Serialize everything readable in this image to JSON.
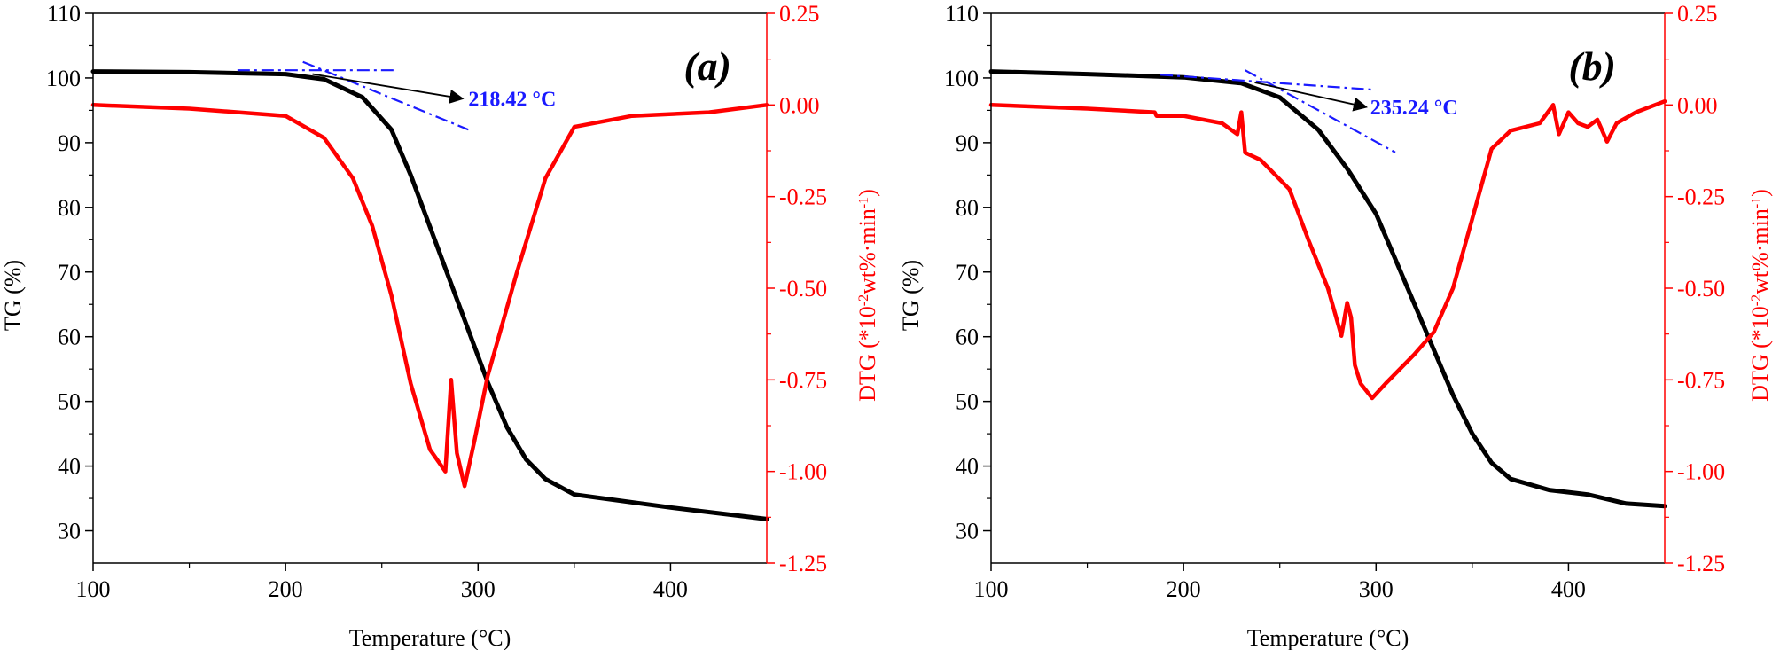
{
  "colors": {
    "tg": "#000000",
    "dtg": "#ff0000",
    "tangent": "#1a1aff",
    "axis": "#000000"
  },
  "chart_data": [
    {
      "type": "line",
      "panel_label": "(a)",
      "xlabel": "Temperature (°C)",
      "ylabel_left": "TG (%)",
      "ylabel_right_prefix": "DTG (*10",
      "ylabel_right_sup1": "-2",
      "ylabel_right_mid": "wt%·min",
      "ylabel_right_sup2": "-1",
      "ylabel_right_suffix": ")",
      "xlim": [
        100,
        450
      ],
      "ylim_left": [
        25,
        110
      ],
      "ylim_right": [
        -1.25,
        0.25
      ],
      "x_ticks": [
        100,
        200,
        300,
        400
      ],
      "x_tick_labels": [
        "100",
        "200",
        "300",
        "400"
      ],
      "y_left_ticks": [
        30,
        40,
        50,
        60,
        70,
        80,
        90,
        100,
        110
      ],
      "y_left_tick_labels": [
        "30",
        "40",
        "50",
        "60",
        "70",
        "80",
        "90",
        "100",
        "110"
      ],
      "y_right_ticks": [
        -1.25,
        -1.0,
        -0.75,
        -0.5,
        -0.25,
        0.0,
        0.25
      ],
      "y_right_tick_labels": [
        "-1.25",
        "-1.00",
        "-0.75",
        "-0.50",
        "-0.25",
        "0.00",
        "0.25"
      ],
      "onset_label": "218.42 °C",
      "onset": {
        "line1": [
          [
            175,
            101.2
          ],
          [
            258,
            101.2
          ]
        ],
        "line2": [
          [
            209,
            102.5
          ],
          [
            295,
            92.0
          ]
        ],
        "arrow_from": [
          214,
          100.6
        ],
        "arrow_to": [
          292,
          96.8
        ],
        "label_at": [
          295,
          96.8
        ]
      },
      "series": [
        {
          "name": "TG",
          "axis": "left",
          "points": [
            [
              100,
              101
            ],
            [
              150,
              100.9
            ],
            [
              200,
              100.6
            ],
            [
              220,
              99.8
            ],
            [
              240,
              97
            ],
            [
              255,
              92
            ],
            [
              265,
              85
            ],
            [
              275,
              77
            ],
            [
              285,
              69
            ],
            [
              295,
              61
            ],
            [
              305,
              53
            ],
            [
              315,
              46
            ],
            [
              325,
              41
            ],
            [
              335,
              38
            ],
            [
              350,
              35.6
            ],
            [
              400,
              33.6
            ],
            [
              450,
              31.8
            ]
          ]
        },
        {
          "name": "DTG",
          "axis": "right",
          "points": [
            [
              100,
              0.0
            ],
            [
              150,
              -0.01
            ],
            [
              200,
              -0.03
            ],
            [
              220,
              -0.09
            ],
            [
              235,
              -0.2
            ],
            [
              245,
              -0.33
            ],
            [
              255,
              -0.52
            ],
            [
              265,
              -0.76
            ],
            [
              275,
              -0.94
            ],
            [
              283,
              -1.0
            ],
            [
              286,
              -0.75
            ],
            [
              289,
              -0.95
            ],
            [
              293,
              -1.04
            ],
            [
              298,
              -0.92
            ],
            [
              305,
              -0.74
            ],
            [
              320,
              -0.46
            ],
            [
              335,
              -0.2
            ],
            [
              350,
              -0.06
            ],
            [
              380,
              -0.03
            ],
            [
              420,
              -0.02
            ],
            [
              450,
              0.0
            ]
          ]
        }
      ]
    },
    {
      "type": "line",
      "panel_label": "(b)",
      "xlabel": "Temperature (°C)",
      "ylabel_left": "TG (%)",
      "ylabel_right_prefix": "DTG (*10",
      "ylabel_right_sup1": "-2",
      "ylabel_right_mid": "wt%·min",
      "ylabel_right_sup2": "-1",
      "ylabel_right_suffix": ")",
      "xlim": [
        100,
        450
      ],
      "ylim_left": [
        25,
        110
      ],
      "ylim_right": [
        -1.25,
        0.25
      ],
      "x_ticks": [
        100,
        200,
        300,
        400
      ],
      "x_tick_labels": [
        "100",
        "200",
        "300",
        "400"
      ],
      "y_left_ticks": [
        30,
        40,
        50,
        60,
        70,
        80,
        90,
        100,
        110
      ],
      "y_left_tick_labels": [
        "30",
        "40",
        "50",
        "60",
        "70",
        "80",
        "90",
        "100",
        "110"
      ],
      "y_right_ticks": [
        -1.25,
        -1.0,
        -0.75,
        -0.5,
        -0.25,
        0.0,
        0.25
      ],
      "y_right_tick_labels": [
        "-1.25",
        "-1.00",
        "-0.75",
        "-0.50",
        "-0.25",
        "0.00",
        "0.25"
      ],
      "onset_label": "235.24 °C",
      "onset": {
        "line1": [
          [
            188,
            100.5
          ],
          [
            298,
            98.2
          ]
        ],
        "line2": [
          [
            232,
            101.2
          ],
          [
            310,
            88.5
          ]
        ],
        "arrow_from": [
          237,
          99.3
        ],
        "arrow_to": [
          295,
          95.5
        ],
        "label_at": [
          297,
          95.5
        ]
      },
      "series": [
        {
          "name": "TG",
          "axis": "left",
          "points": [
            [
              100,
              101
            ],
            [
              150,
              100.6
            ],
            [
              200,
              100.1
            ],
            [
              230,
              99.2
            ],
            [
              250,
              97
            ],
            [
              270,
              92
            ],
            [
              285,
              86
            ],
            [
              300,
              79
            ],
            [
              310,
              72
            ],
            [
              320,
              65
            ],
            [
              330,
              58
            ],
            [
              340,
              51
            ],
            [
              350,
              45
            ],
            [
              360,
              40.5
            ],
            [
              370,
              38
            ],
            [
              390,
              36.3
            ],
            [
              410,
              35.6
            ],
            [
              430,
              34.2
            ],
            [
              450,
              33.8
            ]
          ]
        },
        {
          "name": "DTG",
          "axis": "right",
          "points": [
            [
              100,
              0.0
            ],
            [
              150,
              -0.01
            ],
            [
              185,
              -0.02
            ],
            [
              186,
              -0.03
            ],
            [
              200,
              -0.03
            ],
            [
              220,
              -0.05
            ],
            [
              228,
              -0.08
            ],
            [
              230,
              -0.02
            ],
            [
              232,
              -0.13
            ],
            [
              240,
              -0.15
            ],
            [
              255,
              -0.23
            ],
            [
              265,
              -0.37
            ],
            [
              275,
              -0.5
            ],
            [
              282,
              -0.63
            ],
            [
              285,
              -0.54
            ],
            [
              287,
              -0.58
            ],
            [
              289,
              -0.71
            ],
            [
              292,
              -0.76
            ],
            [
              298,
              -0.8
            ],
            [
              305,
              -0.76
            ],
            [
              320,
              -0.68
            ],
            [
              330,
              -0.62
            ],
            [
              340,
              -0.5
            ],
            [
              350,
              -0.31
            ],
            [
              360,
              -0.12
            ],
            [
              370,
              -0.07
            ],
            [
              385,
              -0.05
            ],
            [
              392,
              0.0
            ],
            [
              395,
              -0.08
            ],
            [
              400,
              -0.02
            ],
            [
              405,
              -0.05
            ],
            [
              410,
              -0.06
            ],
            [
              415,
              -0.04
            ],
            [
              420,
              -0.1
            ],
            [
              425,
              -0.05
            ],
            [
              435,
              -0.02
            ],
            [
              450,
              0.01
            ]
          ]
        }
      ]
    }
  ]
}
